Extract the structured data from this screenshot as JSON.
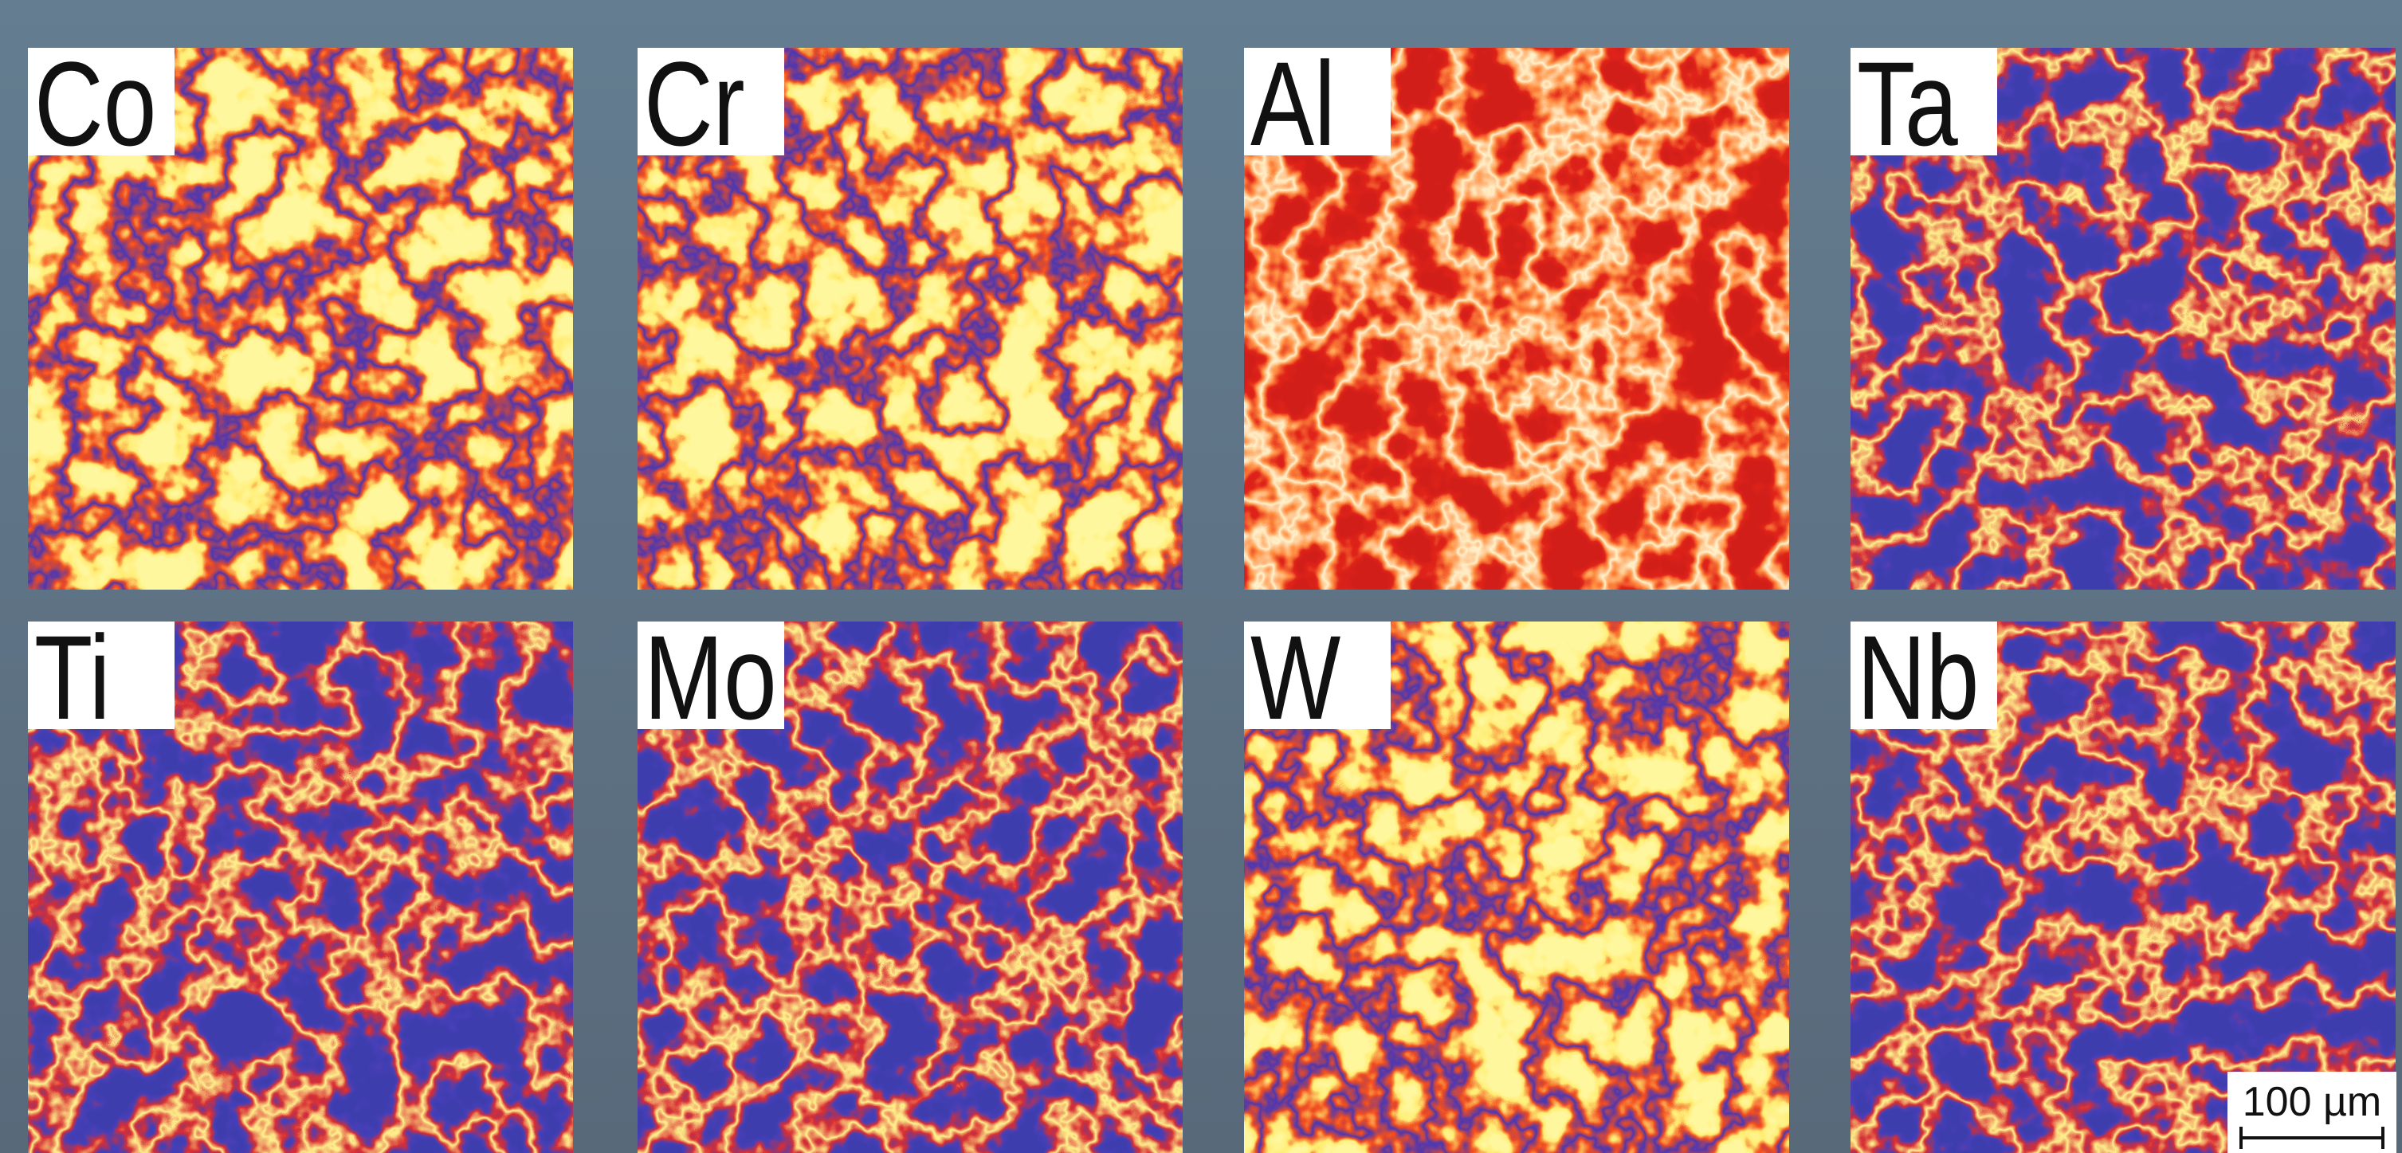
{
  "panels": [
    {
      "label": "Co"
    },
    {
      "label": "Cr"
    },
    {
      "label": "Al"
    },
    {
      "label": "Ta"
    },
    {
      "label": "Ti"
    },
    {
      "label": "Mo"
    },
    {
      "label": "W"
    },
    {
      "label": "Nb"
    }
  ],
  "scale_bar": {
    "label": "100 µm"
  }
}
